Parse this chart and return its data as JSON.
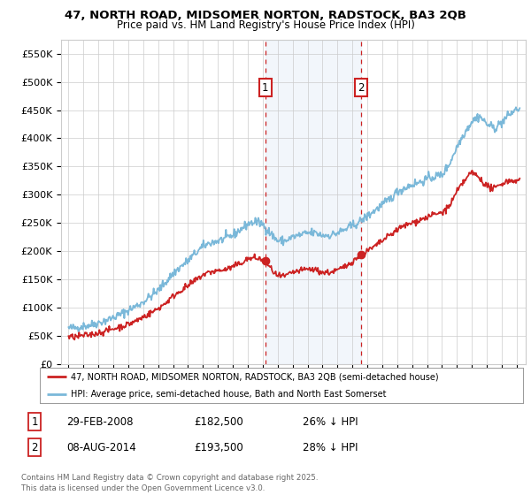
{
  "title1": "47, NORTH ROAD, MIDSOMER NORTON, RADSTOCK, BA3 2QB",
  "title2": "Price paid vs. HM Land Registry's House Price Index (HPI)",
  "legend_line1": "47, NORTH ROAD, MIDSOMER NORTON, RADSTOCK, BA3 2QB (semi-detached house)",
  "legend_line2": "HPI: Average price, semi-detached house, Bath and North East Somerset",
  "transaction1_date": "29-FEB-2008",
  "transaction1_price": 182500,
  "transaction1_note": "26% ↓ HPI",
  "transaction2_date": "08-AUG-2014",
  "transaction2_price": 193500,
  "transaction2_note": "28% ↓ HPI",
  "hpi_color": "#7ab8d9",
  "price_color": "#cc2222",
  "vline_color": "#cc2222",
  "label_box_color": "#cc2222",
  "footer": "Contains HM Land Registry data © Crown copyright and database right 2025.\nThis data is licensed under the Open Government Licence v3.0.",
  "ylim": [
    0,
    575000
  ],
  "yticks": [
    0,
    50000,
    100000,
    150000,
    200000,
    250000,
    300000,
    350000,
    400000,
    450000,
    500000,
    550000
  ],
  "background_color": "#ffffff",
  "grid_color": "#cccccc"
}
